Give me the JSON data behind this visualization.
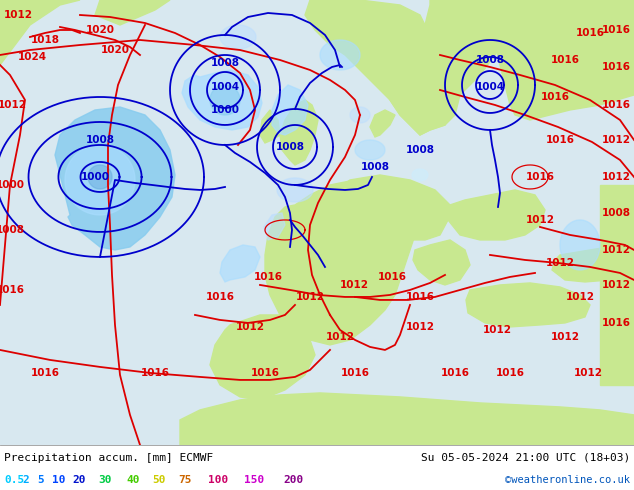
{
  "title_left": "Precipitation accum. [mm] ECMWF",
  "title_right": "Su 05-05-2024 21:00 UTC (18+03)",
  "credit": "©weatheronline.co.uk",
  "legend_values": [
    "0.5",
    "2",
    "5",
    "10",
    "20",
    "30",
    "40",
    "50",
    "75",
    "100",
    "150",
    "200"
  ],
  "legend_colors": [
    "#00ccff",
    "#00aaff",
    "#0077ff",
    "#0044ff",
    "#0011cc",
    "#00cc44",
    "#44cc00",
    "#cccc00",
    "#cc6600",
    "#cc0066",
    "#cc00cc",
    "#880088"
  ],
  "ocean_color": "#d8e8f0",
  "land_color": "#c8e890",
  "land_gray_color": "#b0b8a0",
  "prec_cyan1": "#aaddff",
  "prec_cyan2": "#88ccee",
  "prec_blue1": "#66aadd",
  "isobar_red": "#dd0000",
  "isobar_blue": "#0000cc",
  "bottom_bg": "#ffffff",
  "text_color": "#000000",
  "credit_color": "#0055bb",
  "figsize": [
    6.34,
    4.9
  ],
  "dpi": 100
}
